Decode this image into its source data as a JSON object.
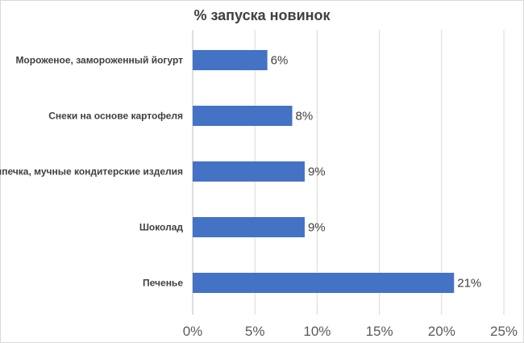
{
  "chart_data": {
    "type": "bar",
    "orientation": "horizontal",
    "title": "% запуска новинок",
    "categories": [
      "Мороженое, замороженный йогурт",
      "Снеки на основе картофеля",
      "Выпечка, мучные кондитерские изделия",
      "Шоколад",
      "Печенье"
    ],
    "values": [
      6,
      8,
      9,
      9,
      21
    ],
    "data_labels": [
      "6%",
      "8%",
      "9%",
      "9%",
      "21%"
    ],
    "x_ticks": [
      "0%",
      "5%",
      "10%",
      "15%",
      "20%",
      "25%"
    ],
    "xlim": [
      0,
      25
    ],
    "x_tick_step": 5,
    "grid": "vertical",
    "legend": "none",
    "bar_color": "#4472c4",
    "grid_color": "#d9d9d9"
  }
}
